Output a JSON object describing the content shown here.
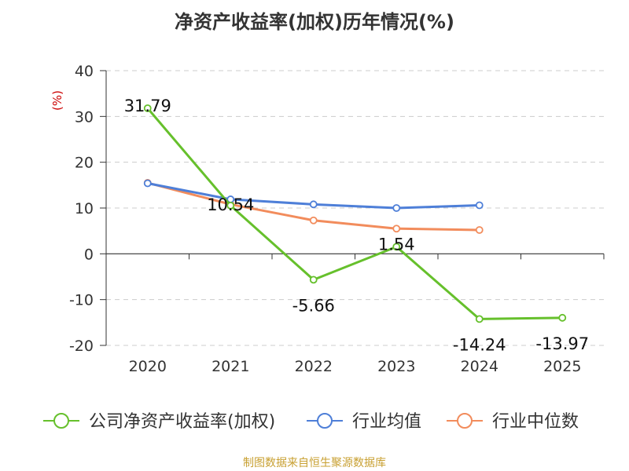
{
  "chart_data": {
    "type": "line",
    "title": "净资产收益率(加权)历年情况(%)",
    "ylabel": "(%)",
    "categories": [
      "2020",
      "2021",
      "2022",
      "2023",
      "2024",
      "2025"
    ],
    "ylim": [
      -20,
      40
    ],
    "yticks": [
      40,
      30,
      20,
      10,
      0,
      -10,
      -20
    ],
    "grid": true,
    "legend_position": "bottom",
    "series": [
      {
        "name": "公司净资产收益率(加权)",
        "color": "#66c02c",
        "values": [
          31.79,
          10.54,
          -5.66,
          1.54,
          -14.24,
          -13.97
        ],
        "labels": [
          "31.79",
          "10.54",
          "-5.66",
          "1.54",
          "-14.24",
          "-13.97"
        ]
      },
      {
        "name": "行业均值",
        "color": "#4e7fd8",
        "values": [
          15.4,
          11.9,
          10.8,
          10.0,
          10.6,
          null
        ]
      },
      {
        "name": "行业中位数",
        "color": "#f28c5c",
        "values": [
          15.5,
          10.8,
          7.3,
          5.5,
          5.2,
          null
        ]
      }
    ]
  },
  "colors": {
    "title": "#333333",
    "ylabel": "#cc0000",
    "source": "#c8a032",
    "grid": "#cccccc",
    "axis": "#333333"
  },
  "source": "制图数据来自恒生聚源数据库"
}
